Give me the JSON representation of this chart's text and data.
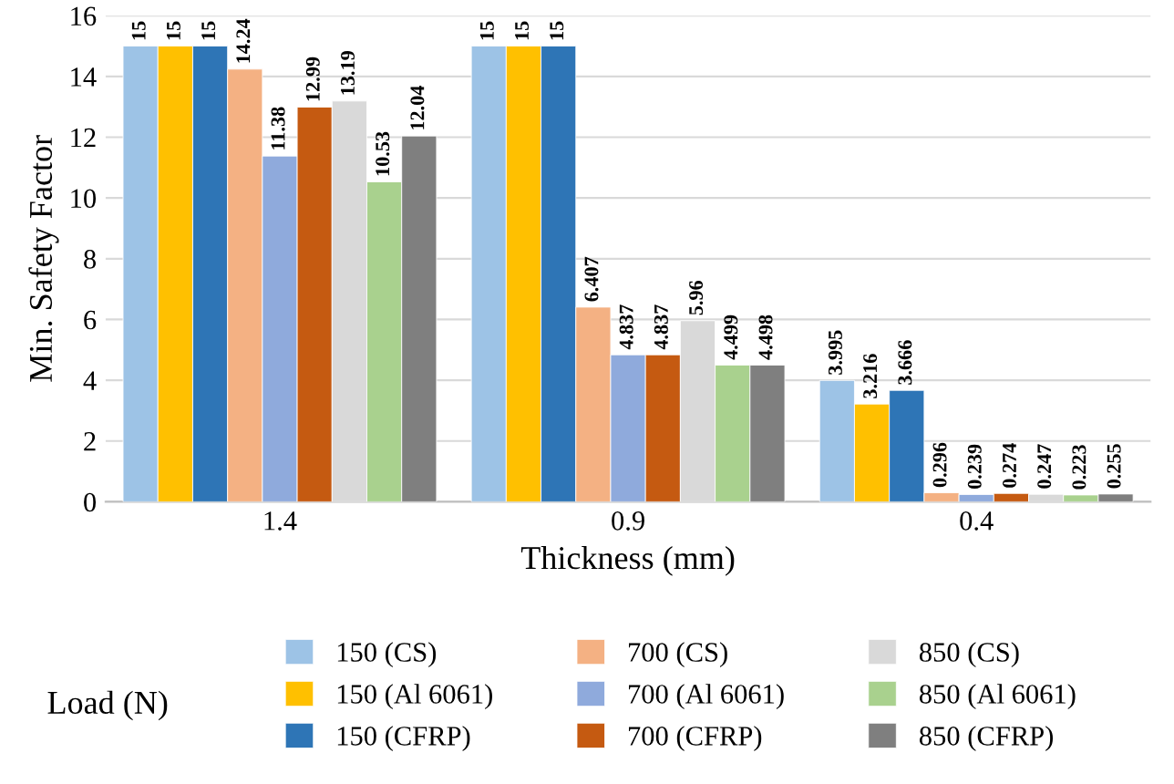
{
  "chart_data": {
    "type": "bar",
    "xlabel": "Thickness (mm)",
    "ylabel": "Min. Safety Factor",
    "legend_title": "Load (N)",
    "categories": [
      "1.4",
      "0.9",
      "0.4"
    ],
    "series": [
      {
        "name": "150 (CS)",
        "color": "#9dc3e6",
        "values": [
          15,
          15,
          3.995
        ]
      },
      {
        "name": "150 (Al 6061)",
        "color": "#ffc000",
        "values": [
          15,
          15,
          3.216
        ]
      },
      {
        "name": "150 (CFRP)",
        "color": "#2e75b6",
        "values": [
          15,
          15,
          3.666
        ]
      },
      {
        "name": "700 (CS)",
        "color": "#f4b183",
        "values": [
          14.24,
          6.407,
          0.296
        ]
      },
      {
        "name": "700 (Al 6061)",
        "color": "#8faadc",
        "values": [
          11.38,
          4.837,
          0.239
        ]
      },
      {
        "name": "700 (CFRP)",
        "color": "#c55a11",
        "values": [
          12.99,
          4.837,
          0.274
        ]
      },
      {
        "name": "850 (CS)",
        "color": "#d9d9d9",
        "values": [
          13.19,
          5.96,
          0.247
        ]
      },
      {
        "name": "850 (Al 6061)",
        "color": "#a9d18e",
        "values": [
          10.53,
          4.499,
          0.223
        ]
      },
      {
        "name": "850 (CFRP)",
        "color": "#7f7f7f",
        "values": [
          12.04,
          4.498,
          0.255
        ]
      }
    ],
    "ylim": [
      0,
      16
    ],
    "yticks": [
      0,
      2,
      4,
      6,
      8,
      10,
      12,
      14,
      16
    ],
    "grid": "y",
    "legend": "bottom",
    "data_labels": true
  }
}
